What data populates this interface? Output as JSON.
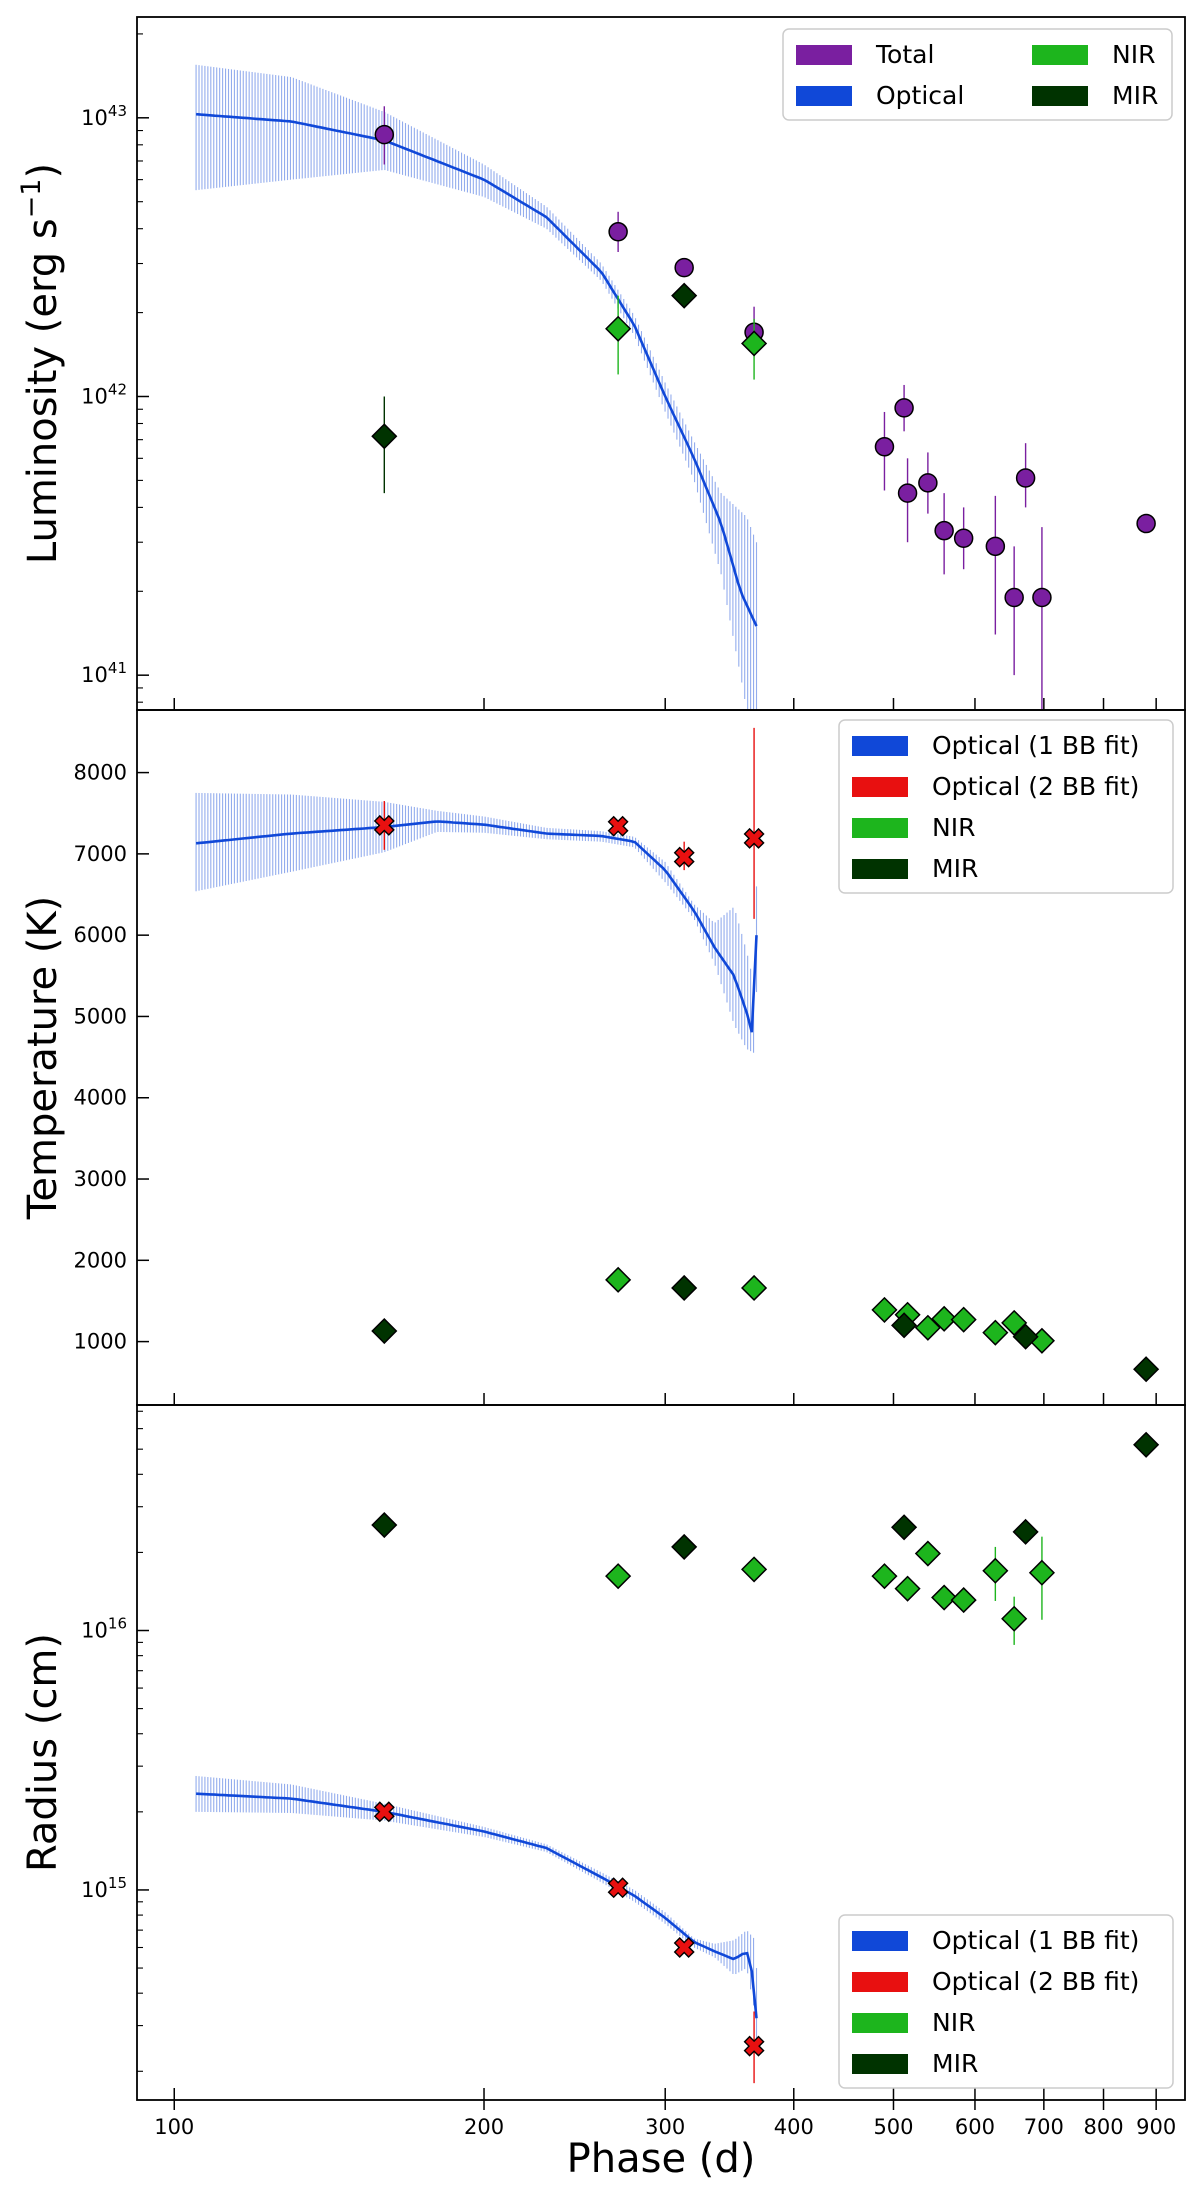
{
  "chart_data": [
    {
      "type": "scatter",
      "panel": "luminosity",
      "ylabel": "Luminosity (erg s",
      "ylabel_sup": "−1",
      "ylabel_close": ")",
      "xscale": "log",
      "yscale": "log",
      "xlim": [
        92,
        960
      ],
      "ylim": [
        7.5e+40,
        2.3e+43
      ],
      "y_ticks": [
        {
          "value": 1e+41,
          "base": "10",
          "exp": "41"
        },
        {
          "value": 1e+42,
          "base": "10",
          "exp": "42"
        },
        {
          "value": 1e+43,
          "base": "10",
          "exp": "43"
        }
      ],
      "legend": {
        "placement": "top-right",
        "columns": 2,
        "entries": [
          {
            "label": "Total",
            "color": "#7a1fa0"
          },
          {
            "label": "NIR",
            "color": "#1db51d"
          },
          {
            "label": "Optical",
            "color": "#1048d8"
          },
          {
            "label": "MIR",
            "color": "#003300"
          }
        ]
      },
      "curve": {
        "name": "Optical",
        "color": "#1048d8",
        "points": [
          [
            105,
            1.03e+43
          ],
          [
            130,
            9.7e+42
          ],
          [
            160,
            8.3e+42
          ],
          [
            200,
            6e+42
          ],
          [
            230,
            4.4e+42
          ],
          [
            260,
            2.8e+42
          ],
          [
            280,
            1.8e+42
          ],
          [
            300,
            1e+42
          ],
          [
            320,
            6e+41
          ],
          [
            340,
            3.5e+41
          ],
          [
            355,
            2e+41
          ],
          [
            368,
            1.5e+41
          ]
        ],
        "band_upper": [
          [
            105,
            1.55e+43
          ],
          [
            130,
            1.4e+43
          ],
          [
            160,
            1.05e+43
          ],
          [
            200,
            6.8e+42
          ],
          [
            230,
            4.8e+42
          ],
          [
            260,
            3e+42
          ],
          [
            280,
            1.95e+42
          ],
          [
            300,
            1.12e+42
          ],
          [
            320,
            6.9e+41
          ],
          [
            340,
            4.5e+41
          ],
          [
            360,
            3.7e+41
          ],
          [
            368,
            3e+41
          ]
        ],
        "band_lower": [
          [
            105,
            5.5e+42
          ],
          [
            130,
            6e+42
          ],
          [
            160,
            6.5e+42
          ],
          [
            200,
            5.2e+42
          ],
          [
            230,
            4e+42
          ],
          [
            260,
            2.6e+42
          ],
          [
            280,
            1.65e+42
          ],
          [
            300,
            8.8e+41
          ],
          [
            320,
            5e+41
          ],
          [
            340,
            2.3e+41
          ],
          [
            355,
            1e+41
          ],
          [
            360,
            7.5e+40
          ],
          [
            368,
            7.5e+40
          ]
        ]
      },
      "series": [
        {
          "name": "Total",
          "marker": "circle",
          "color": "#7a1fa0",
          "points": [
            {
              "x": 160,
              "y": 8.7e+42,
              "lo": 6.8e+42,
              "hi": 1.1e+43
            },
            {
              "x": 270,
              "y": 3.9e+42,
              "lo": 3.3e+42,
              "hi": 4.6e+42
            },
            {
              "x": 313,
              "y": 2.9e+42
            },
            {
              "x": 366,
              "y": 1.7e+42,
              "lo": 1.4e+42,
              "hi": 2.1e+42
            },
            {
              "x": 490,
              "y": 6.6e+41,
              "lo": 4.6e+41,
              "hi": 8.8e+41
            },
            {
              "x": 512,
              "y": 9.1e+41,
              "lo": 7.5e+41,
              "hi": 1.1e+42
            },
            {
              "x": 516,
              "y": 4.5e+41,
              "lo": 3e+41,
              "hi": 6e+41
            },
            {
              "x": 540,
              "y": 4.9e+41,
              "lo": 3.8e+41,
              "hi": 6.3e+41
            },
            {
              "x": 560,
              "y": 3.3e+41,
              "lo": 2.3e+41,
              "hi": 4.5e+41
            },
            {
              "x": 585,
              "y": 3.1e+41,
              "lo": 2.4e+41,
              "hi": 4e+41
            },
            {
              "x": 628,
              "y": 2.9e+41,
              "lo": 1.4e+41,
              "hi": 4.4e+41
            },
            {
              "x": 655,
              "y": 1.9e+41,
              "lo": 1e+41,
              "hi": 2.9e+41
            },
            {
              "x": 672,
              "y": 5.1e+41,
              "lo": 4e+41,
              "hi": 6.8e+41
            },
            {
              "x": 697,
              "y": 1.9e+41,
              "lo": 7.5e+40,
              "hi": 3.4e+41
            },
            {
              "x": 880,
              "y": 3.5e+41
            }
          ]
        },
        {
          "name": "NIR",
          "marker": "diamond",
          "color": "#1db51d",
          "points": [
            {
              "x": 270,
              "y": 1.75e+42,
              "lo": 1.2e+42,
              "hi": 2.3e+42
            },
            {
              "x": 366,
              "y": 1.55e+42,
              "lo": 1.15e+42,
              "hi": 1.9e+42
            }
          ]
        },
        {
          "name": "MIR",
          "marker": "diamond",
          "color": "#003300",
          "points": [
            {
              "x": 160,
              "y": 7.2e+41,
              "lo": 4.5e+41,
              "hi": 1e+42
            },
            {
              "x": 313,
              "y": 2.3e+42
            }
          ]
        }
      ]
    },
    {
      "type": "scatter",
      "panel": "temperature",
      "ylabel": "Temperature (K)",
      "xscale": "log",
      "yscale": "linear",
      "xlim": [
        92,
        960
      ],
      "ylim": [
        220,
        8770
      ],
      "y_ticks": [
        {
          "value": 1000,
          "label": "1000"
        },
        {
          "value": 2000,
          "label": "2000"
        },
        {
          "value": 3000,
          "label": "3000"
        },
        {
          "value": 4000,
          "label": "4000"
        },
        {
          "value": 5000,
          "label": "5000"
        },
        {
          "value": 6000,
          "label": "6000"
        },
        {
          "value": 7000,
          "label": "7000"
        },
        {
          "value": 8000,
          "label": "8000"
        }
      ],
      "legend": {
        "placement": "top-right",
        "columns": 1,
        "entries": [
          {
            "label": "Optical (1 BB fit)",
            "color": "#1048d8"
          },
          {
            "label": "Optical (2 BB fit)",
            "color": "#e81010"
          },
          {
            "label": "NIR",
            "color": "#1db51d"
          },
          {
            "label": "MIR",
            "color": "#003300"
          }
        ]
      },
      "curve": {
        "name": "Optical (1 BB fit)",
        "color": "#1048d8",
        "points": [
          [
            105,
            7130
          ],
          [
            130,
            7250
          ],
          [
            160,
            7330
          ],
          [
            180,
            7400
          ],
          [
            200,
            7360
          ],
          [
            230,
            7250
          ],
          [
            260,
            7220
          ],
          [
            280,
            7150
          ],
          [
            300,
            6800
          ],
          [
            320,
            6300
          ],
          [
            335,
            5850
          ],
          [
            350,
            5500
          ],
          [
            360,
            5050
          ],
          [
            366,
            4700
          ],
          [
            368,
            6000
          ]
        ],
        "band_upper": [
          [
            105,
            7750
          ],
          [
            130,
            7730
          ],
          [
            160,
            7640
          ],
          [
            180,
            7530
          ],
          [
            200,
            7460
          ],
          [
            230,
            7320
          ],
          [
            260,
            7280
          ],
          [
            280,
            7210
          ],
          [
            300,
            6900
          ],
          [
            320,
            6380
          ],
          [
            335,
            6150
          ],
          [
            350,
            6350
          ],
          [
            360,
            5800
          ],
          [
            366,
            5400
          ],
          [
            368,
            6600
          ]
        ],
        "band_lower": [
          [
            105,
            6540
          ],
          [
            130,
            6780
          ],
          [
            160,
            7020
          ],
          [
            180,
            7270
          ],
          [
            200,
            7260
          ],
          [
            230,
            7180
          ],
          [
            260,
            7150
          ],
          [
            280,
            7080
          ],
          [
            300,
            6650
          ],
          [
            320,
            6200
          ],
          [
            335,
            5650
          ],
          [
            350,
            4900
          ],
          [
            360,
            4600
          ],
          [
            366,
            4550
          ],
          [
            368,
            5300
          ]
        ]
      },
      "series": [
        {
          "name": "Optical (2 BB fit)",
          "marker": "x",
          "color": "#e81010",
          "points": [
            {
              "x": 160,
              "y": 7350,
              "lo": 7050,
              "hi": 7650
            },
            {
              "x": 270,
              "y": 7340
            },
            {
              "x": 313,
              "y": 6960,
              "lo": 6800,
              "hi": 7150
            },
            {
              "x": 366,
              "y": 7190,
              "lo": 6200,
              "hi": 8550
            }
          ]
        },
        {
          "name": "NIR",
          "marker": "diamond",
          "color": "#1db51d",
          "points": [
            {
              "x": 270,
              "y": 1760
            },
            {
              "x": 366,
              "y": 1660
            },
            {
              "x": 490,
              "y": 1390
            },
            {
              "x": 516,
              "y": 1330
            },
            {
              "x": 540,
              "y": 1170
            },
            {
              "x": 560,
              "y": 1280
            },
            {
              "x": 585,
              "y": 1270
            },
            {
              "x": 628,
              "y": 1110
            },
            {
              "x": 655,
              "y": 1230
            },
            {
              "x": 697,
              "y": 1010
            }
          ]
        },
        {
          "name": "MIR",
          "marker": "diamond",
          "color": "#003300",
          "points": [
            {
              "x": 160,
              "y": 1130
            },
            {
              "x": 313,
              "y": 1660
            },
            {
              "x": 512,
              "y": 1200
            },
            {
              "x": 672,
              "y": 1060
            },
            {
              "x": 880,
              "y": 660
            }
          ]
        }
      ]
    },
    {
      "type": "scatter",
      "panel": "radius",
      "ylabel": "Radius (cm)",
      "xlabel": "Phase (d)",
      "xscale": "log",
      "yscale": "log",
      "xlim": [
        92,
        960
      ],
      "ylim": [
        155000000000000.0,
        7.4e+16
      ],
      "x_ticks": [
        {
          "value": 100,
          "label": "100"
        },
        {
          "value": 200,
          "label": "200"
        },
        {
          "value": 300,
          "label": "300"
        },
        {
          "value": 400,
          "label": "400"
        },
        {
          "value": 500,
          "label": "500"
        },
        {
          "value": 600,
          "label": "600"
        },
        {
          "value": 700,
          "label": "700"
        },
        {
          "value": 800,
          "label": "800"
        },
        {
          "value": 900,
          "label": "900"
        }
      ],
      "y_ticks": [
        {
          "value": 1000000000000000.0,
          "base": "10",
          "exp": "15"
        },
        {
          "value": 1e+16,
          "base": "10",
          "exp": "16"
        }
      ],
      "legend": {
        "placement": "bottom-right",
        "columns": 1,
        "entries": [
          {
            "label": "Optical (1 BB fit)",
            "color": "#1048d8"
          },
          {
            "label": "Optical (2 BB fit)",
            "color": "#e81010"
          },
          {
            "label": "NIR",
            "color": "#1db51d"
          },
          {
            "label": "MIR",
            "color": "#003300"
          }
        ]
      },
      "curve": {
        "name": "Optical (1 BB fit)",
        "color": "#1048d8",
        "points": [
          [
            105,
            2350000000000000.0
          ],
          [
            130,
            2250000000000000.0
          ],
          [
            160,
            2000000000000000.0
          ],
          [
            200,
            1680000000000000.0
          ],
          [
            230,
            1450000000000000.0
          ],
          [
            260,
            1120000000000000.0
          ],
          [
            280,
            950000000000000.0
          ],
          [
            300,
            780000000000000.0
          ],
          [
            320,
            630000000000000.0
          ],
          [
            335,
            580000000000000.0
          ],
          [
            350,
            540000000000000.0
          ],
          [
            360,
            580000000000000.0
          ],
          [
            366,
            450000000000000.0
          ],
          [
            368,
            320000000000000.0
          ]
        ],
        "band_upper": [
          [
            105,
            2750000000000000.0
          ],
          [
            130,
            2550000000000000.0
          ],
          [
            160,
            2150000000000000.0
          ],
          [
            200,
            1750000000000000.0
          ],
          [
            230,
            1500000000000000.0
          ],
          [
            260,
            1170000000000000.0
          ],
          [
            280,
            1000000000000000.0
          ],
          [
            300,
            820000000000000.0
          ],
          [
            320,
            650000000000000.0
          ],
          [
            335,
            620000000000000.0
          ],
          [
            350,
            640000000000000.0
          ],
          [
            360,
            700000000000000.0
          ],
          [
            366,
            650000000000000.0
          ],
          [
            368,
            500000000000000.0
          ]
        ],
        "band_lower": [
          [
            105,
            2000000000000000.0
          ],
          [
            130,
            1980000000000000.0
          ],
          [
            160,
            1850000000000000.0
          ],
          [
            200,
            1600000000000000.0
          ],
          [
            230,
            1400000000000000.0
          ],
          [
            260,
            1070000000000000.0
          ],
          [
            280,
            900000000000000.0
          ],
          [
            300,
            740000000000000.0
          ],
          [
            320,
            600000000000000.0
          ],
          [
            335,
            550000000000000.0
          ],
          [
            350,
            470000000000000.0
          ],
          [
            360,
            500000000000000.0
          ],
          [
            366,
            350000000000000.0
          ],
          [
            368,
            260000000000000.0
          ]
        ]
      },
      "series": [
        {
          "name": "Optical (2 BB fit)",
          "marker": "x",
          "color": "#e81010",
          "points": [
            {
              "x": 160,
              "y": 2000000000000000.0
            },
            {
              "x": 270,
              "y": 1020000000000000.0
            },
            {
              "x": 313,
              "y": 600000000000000.0
            },
            {
              "x": 366,
              "y": 250000000000000.0,
              "lo": 180000000000000.0,
              "hi": 340000000000000.0
            }
          ]
        },
        {
          "name": "NIR",
          "marker": "diamond",
          "color": "#1db51d",
          "points": [
            {
              "x": 270,
              "y": 1.62e+16
            },
            {
              "x": 366,
              "y": 1.72e+16
            },
            {
              "x": 490,
              "y": 1.62e+16
            },
            {
              "x": 516,
              "y": 1.45e+16
            },
            {
              "x": 540,
              "y": 1.98e+16
            },
            {
              "x": 560,
              "y": 1.34e+16
            },
            {
              "x": 585,
              "y": 1.31e+16
            },
            {
              "x": 628,
              "y": 1.7e+16,
              "lo": 1.3e+16,
              "hi": 2.1e+16
            },
            {
              "x": 655,
              "y": 1.11e+16,
              "lo": 8800000000000000.0,
              "hi": 1.35e+16
            },
            {
              "x": 697,
              "y": 1.67e+16,
              "lo": 1.1e+16,
              "hi": 2.3e+16
            }
          ]
        },
        {
          "name": "MIR",
          "marker": "diamond",
          "color": "#003300",
          "points": [
            {
              "x": 160,
              "y": 2.55e+16
            },
            {
              "x": 313,
              "y": 2.1e+16
            },
            {
              "x": 512,
              "y": 2.5e+16
            },
            {
              "x": 672,
              "y": 2.4e+16
            },
            {
              "x": 880,
              "y": 5.2e+16
            }
          ]
        }
      ]
    }
  ]
}
